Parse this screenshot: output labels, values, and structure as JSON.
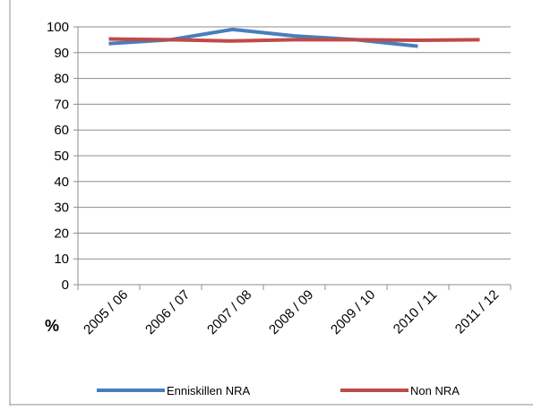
{
  "chart_data": {
    "type": "line",
    "ylabel": "%",
    "categories": [
      "2005 / 06",
      "2006 / 07",
      "2007 / 08",
      "2008 / 09",
      "2009 / 10",
      "2010 / 11",
      "2011 / 12"
    ],
    "ylim": [
      0,
      100
    ],
    "yticks": [
      "0",
      "10",
      "20",
      "30",
      "40",
      "50",
      "60",
      "70",
      "80",
      "90",
      "100"
    ],
    "grid": true,
    "legend": "bottom",
    "series": [
      {
        "name": "Enniskillen NRA",
        "color": "#4a7ebb",
        "values": [
          93.5,
          95,
          99,
          96.5,
          95,
          92.5,
          null
        ]
      },
      {
        "name": "Non NRA",
        "color": "#be4b48",
        "values": [
          95.3,
          95,
          94.5,
          95,
          95,
          94.8,
          95
        ]
      }
    ]
  }
}
